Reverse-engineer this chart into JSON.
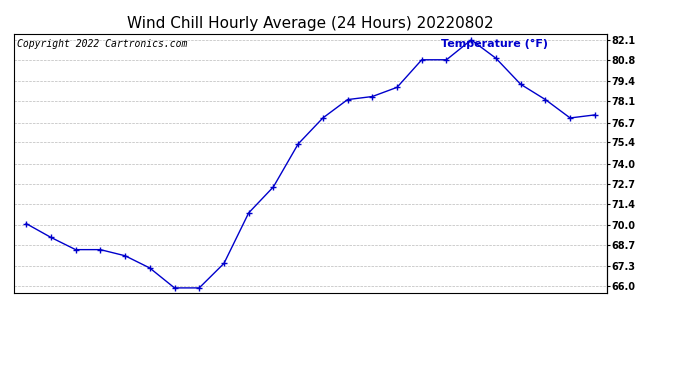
{
  "title": "Wind Chill Hourly Average (24 Hours) 20220802",
  "copyright_text": "Copyright 2022 Cartronics.com",
  "ylabel": "Temperature (°F)",
  "line_color": "#0000cc",
  "background_color": "#ffffff",
  "grid_color": "#bbbbbb",
  "hours": [
    0,
    1,
    2,
    3,
    4,
    5,
    6,
    7,
    8,
    9,
    10,
    11,
    12,
    13,
    14,
    15,
    16,
    17,
    18,
    19,
    20,
    21,
    22,
    23
  ],
  "temperatures": [
    70.1,
    69.2,
    68.4,
    68.4,
    68.0,
    67.2,
    65.9,
    65.9,
    67.5,
    70.8,
    72.5,
    75.3,
    77.0,
    78.2,
    78.4,
    79.0,
    80.8,
    80.8,
    82.1,
    80.9,
    79.2,
    78.2,
    77.0,
    77.2
  ],
  "ylim": [
    65.6,
    82.5
  ],
  "yticks": [
    66.0,
    67.3,
    68.7,
    70.0,
    71.4,
    72.7,
    74.0,
    75.4,
    76.7,
    78.1,
    79.4,
    80.8,
    82.1
  ],
  "title_fontsize": 11,
  "tick_fontsize": 7,
  "copyright_fontsize": 7,
  "ylabel_fontsize": 8,
  "figsize": [
    6.9,
    3.75
  ],
  "dpi": 100
}
